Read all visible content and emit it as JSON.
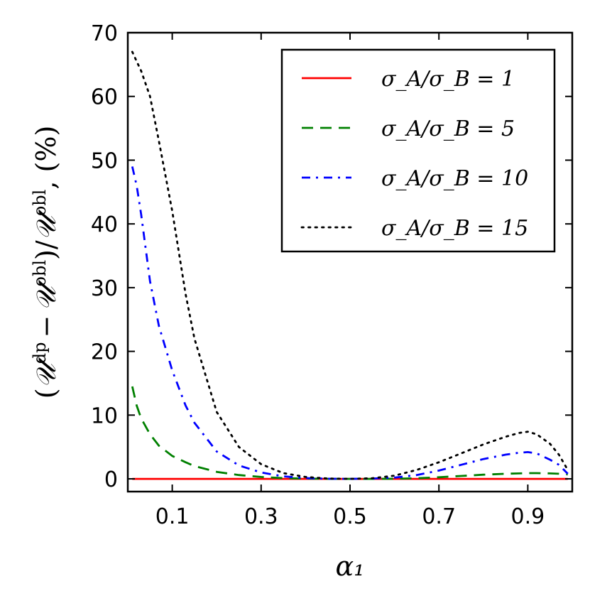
{
  "chart_data": {
    "type": "line",
    "title": "",
    "xlabel": "α₁",
    "ylabel": "(𝒰^dp − 𝒰^obl)/𝒰^obl, (%)",
    "ylabel_parts": {
      "open": "(",
      "U": "𝒰",
      "sup_dp": "dp",
      "minus": "−",
      "sup_obl": "obl",
      "slash": ")/",
      "tail": ", (%)"
    },
    "xlim": [
      0.0,
      1.0
    ],
    "ylim": [
      -2,
      70
    ],
    "xticks": [
      0.1,
      0.3,
      0.5,
      0.7,
      0.9
    ],
    "xtick_labels": [
      "0.1",
      "0.3",
      "0.5",
      "0.7",
      "0.9"
    ],
    "yticks": [
      0,
      10,
      20,
      30,
      40,
      50,
      60,
      70
    ],
    "ytick_labels": [
      "0",
      "10",
      "20",
      "30",
      "40",
      "50",
      "60",
      "70"
    ],
    "grid": false,
    "legend_position": "top-right",
    "x": [
      0.01,
      0.02,
      0.03,
      0.05,
      0.07,
      0.1,
      0.13,
      0.15,
      0.2,
      0.25,
      0.3,
      0.35,
      0.4,
      0.45,
      0.5,
      0.55,
      0.6,
      0.65,
      0.7,
      0.75,
      0.8,
      0.85,
      0.88,
      0.9,
      0.92,
      0.95,
      0.97,
      0.99
    ],
    "series": [
      {
        "name": "σA/σB = 1",
        "legend_label": "σ_A/σ_B = 1",
        "color": "#ff0000",
        "dash": "solid",
        "values": [
          0,
          0,
          0,
          0,
          0,
          0,
          0,
          0,
          0,
          0,
          0,
          0,
          0,
          0,
          0,
          0,
          0,
          0,
          0,
          0,
          0,
          0,
          0,
          0,
          0,
          0,
          0,
          0
        ]
      },
      {
        "name": "σA/σB = 5",
        "legend_label": "σ_A/σ_B = 5",
        "color": "#008000",
        "dash": "dashed",
        "values": [
          14.5,
          11.5,
          9.5,
          7.0,
          5.2,
          3.6,
          2.6,
          2.0,
          1.1,
          0.6,
          0.3,
          0.12,
          0.04,
          0.01,
          0.0,
          0.0,
          0.02,
          0.1,
          0.25,
          0.45,
          0.65,
          0.8,
          0.85,
          0.9,
          0.9,
          0.85,
          0.8,
          0.7
        ]
      },
      {
        "name": "σA/σB = 10",
        "legend_label": "σ_A/σ_B = 10",
        "color": "#0000ff",
        "dash": "dashdot",
        "values": [
          49.0,
          46.0,
          41.5,
          31.0,
          24.0,
          17.0,
          11.5,
          8.8,
          4.3,
          2.1,
          1.0,
          0.4,
          0.12,
          0.02,
          0.0,
          0.05,
          0.2,
          0.6,
          1.3,
          2.2,
          3.1,
          3.8,
          4.1,
          4.2,
          4.0,
          3.0,
          2.2,
          0.8
        ]
      },
      {
        "name": "σA/σB = 15",
        "legend_label": "σ_A/σ_B = 15",
        "color": "#000000",
        "dash": "dotted",
        "values": [
          67.0,
          65.5,
          64.0,
          60.0,
          53.0,
          42.0,
          29.0,
          22.0,
          10.5,
          5.0,
          2.3,
          0.9,
          0.3,
          0.05,
          0.0,
          0.1,
          0.5,
          1.4,
          2.6,
          4.0,
          5.4,
          6.6,
          7.2,
          7.4,
          7.0,
          5.5,
          3.8,
          1.4
        ]
      }
    ]
  }
}
